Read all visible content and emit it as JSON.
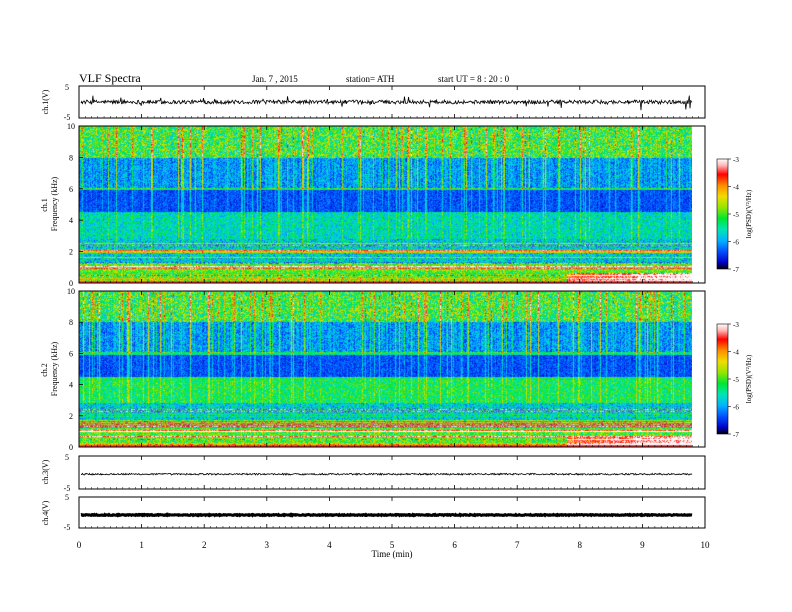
{
  "header": {
    "title": "VLF  Spectra",
    "date": "Jan. 7 , 2015",
    "station": "station= ATH",
    "start": "start  UT  =   8 : 20 : 0"
  },
  "colors": {
    "axes": "#000000",
    "waveform": "#000000",
    "colormap": [
      "#000000",
      "#0000c8",
      "#0050ff",
      "#00b4ff",
      "#00e6b4",
      "#00e632",
      "#96e600",
      "#f0dc00",
      "#ff8c00",
      "#ff0000",
      "#ffb4b4",
      "#ffffff"
    ]
  },
  "chart_data": [
    {
      "type": "line",
      "ylabel": "ch.1(V)",
      "yticks": [
        "5",
        "-5"
      ],
      "ylim": [
        -5,
        5
      ],
      "xlim": [
        0,
        10
      ],
      "data_end_min": 9.8,
      "baseline_v": 0.0,
      "noise_amplitude_v": 0.6,
      "spike_amplitude_v": 2.5
    },
    {
      "type": "heatmap",
      "ylabel": "ch.1\nFrequency  (kHz)",
      "yticks": [
        "0",
        "2",
        "4",
        "6",
        "8",
        "10"
      ],
      "ylim": [
        0,
        10
      ],
      "xlim": [
        0,
        10
      ],
      "data_end_min": 9.8,
      "colorbar": {
        "label": "log(PSD)(V²/Hz)",
        "ticks": [
          "-3",
          "-4",
          "-5",
          "-6",
          "-7"
        ],
        "range": [
          -7,
          -3
        ]
      }
    },
    {
      "type": "heatmap",
      "ylabel": "ch.2\nFrequency  (kHz)",
      "yticks": [
        "0",
        "2",
        "4",
        "6",
        "8",
        "10"
      ],
      "ylim": [
        0,
        10
      ],
      "xlim": [
        0,
        10
      ],
      "data_end_min": 9.8,
      "colorbar": {
        "label": "log(PSD)(V²/Hz)",
        "ticks": [
          "-3",
          "-4",
          "-5",
          "-6",
          "-7"
        ],
        "range": [
          -7,
          -3
        ]
      }
    },
    {
      "type": "line",
      "ylabel": "ch.3(V)",
      "yticks": [
        "5",
        "-5"
      ],
      "ylim": [
        -5,
        5
      ],
      "xlim": [
        0,
        10
      ],
      "data_end_min": 9.8,
      "baseline_v": -0.5,
      "noise_amplitude_v": 0.25
    },
    {
      "type": "line",
      "ylabel": "ch.4(V)",
      "yticks": [
        "5",
        "-5"
      ],
      "ylim": [
        -5,
        5
      ],
      "xlim": [
        0,
        10
      ],
      "data_end_min": 9.8,
      "baseline_v": -0.8,
      "noise_amplitude_v": 0.15
    }
  ],
  "x_axis": {
    "label": "Time  (min)",
    "ticks": [
      "0",
      "1",
      "2",
      "3",
      "4",
      "5",
      "6",
      "7",
      "8",
      "9",
      "10"
    ],
    "range": [
      0,
      10
    ]
  }
}
